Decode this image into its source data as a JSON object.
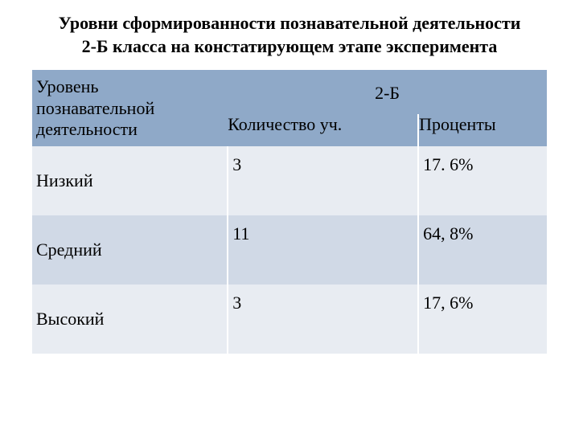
{
  "title_line1": "Уровни сформированности познавательной деятельности",
  "title_line2": "2-Б класса на констатирующем этапе эксперимента",
  "table": {
    "header_background": "#8fa9c8",
    "row_light_background": "#e8ecf2",
    "row_dark_background": "#d0d9e6",
    "text_color": "#000000",
    "border_color": "#ffffff",
    "font_size": 22,
    "row_header_label": "Уровень познавательной деятельности",
    "group_header": "2-Б",
    "columns": [
      "Количество уч.",
      "Проценты"
    ],
    "rows": [
      {
        "level": "Низкий",
        "count": "3",
        "percent": "17. 6%"
      },
      {
        "level": "Средний",
        "count": "11",
        "percent": "64, 8%"
      },
      {
        "level": "Высокий",
        "count": "3",
        "percent": "17, 6%"
      }
    ]
  }
}
